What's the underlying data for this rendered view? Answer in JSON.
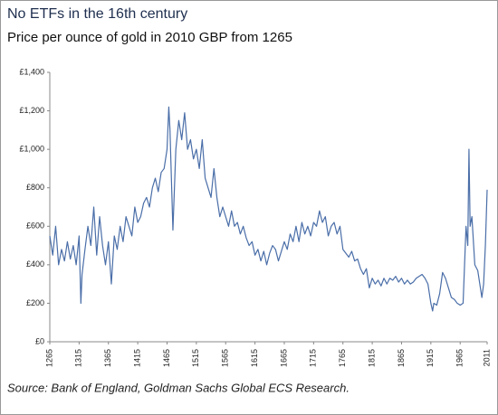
{
  "chart_data": {
    "type": "line",
    "title": "No ETFs in the 16th century",
    "subtitle": "Price per ounce of gold in 2010 GBP from 1265",
    "source": "Source: Bank of England, Goldman Sachs Global ECS Research.",
    "xlim": [
      1265,
      2011
    ],
    "xticks": [
      1265,
      1315,
      1365,
      1415,
      1465,
      1515,
      1565,
      1615,
      1665,
      1715,
      1765,
      1815,
      1865,
      1915,
      1965,
      2011
    ],
    "ylim": [
      0,
      1400
    ],
    "yticks": [
      {
        "value": 0,
        "label": "£0"
      },
      {
        "value": 200,
        "label": "£200"
      },
      {
        "value": 400,
        "label": "£400"
      },
      {
        "value": 600,
        "label": "£600"
      },
      {
        "value": 800,
        "label": "£800"
      },
      {
        "value": 1000,
        "label": "£1,000"
      },
      {
        "value": 1200,
        "label": "£1,200"
      },
      {
        "value": 1400,
        "label": "£1,400"
      }
    ],
    "grid": false,
    "series": [
      {
        "color": "#4a6ea8",
        "x": [
          1265,
          1270,
          1275,
          1280,
          1285,
          1290,
          1295,
          1300,
          1305,
          1310,
          1315,
          1318,
          1320,
          1325,
          1330,
          1335,
          1340,
          1345,
          1350,
          1355,
          1360,
          1365,
          1370,
          1375,
          1380,
          1385,
          1390,
          1395,
          1400,
          1405,
          1410,
          1415,
          1420,
          1425,
          1430,
          1435,
          1440,
          1445,
          1450,
          1455,
          1460,
          1465,
          1468,
          1470,
          1475,
          1480,
          1485,
          1490,
          1495,
          1500,
          1505,
          1510,
          1515,
          1520,
          1525,
          1530,
          1535,
          1540,
          1545,
          1550,
          1555,
          1560,
          1565,
          1570,
          1575,
          1580,
          1585,
          1590,
          1595,
          1600,
          1605,
          1610,
          1615,
          1620,
          1625,
          1630,
          1635,
          1640,
          1645,
          1650,
          1655,
          1660,
          1665,
          1670,
          1675,
          1680,
          1685,
          1690,
          1695,
          1700,
          1705,
          1710,
          1715,
          1720,
          1725,
          1730,
          1735,
          1740,
          1745,
          1750,
          1755,
          1760,
          1765,
          1770,
          1775,
          1780,
          1785,
          1790,
          1795,
          1800,
          1805,
          1810,
          1815,
          1820,
          1825,
          1830,
          1835,
          1840,
          1845,
          1850,
          1855,
          1860,
          1865,
          1870,
          1875,
          1880,
          1885,
          1890,
          1895,
          1900,
          1905,
          1910,
          1915,
          1918,
          1920,
          1925,
          1930,
          1935,
          1940,
          1945,
          1950,
          1955,
          1960,
          1965,
          1970,
          1975,
          1978,
          1980,
          1982,
          1985,
          1990,
          1995,
          2000,
          2002,
          2005,
          2008,
          2011
        ],
        "values": [
          550,
          450,
          600,
          400,
          480,
          420,
          520,
          430,
          500,
          400,
          550,
          200,
          350,
          480,
          600,
          500,
          700,
          450,
          650,
          500,
          400,
          520,
          300,
          550,
          480,
          600,
          520,
          650,
          600,
          550,
          700,
          620,
          650,
          720,
          750,
          700,
          800,
          850,
          780,
          880,
          900,
          1000,
          1220,
          1100,
          580,
          1000,
          1150,
          1050,
          1190,
          1000,
          1050,
          950,
          1000,
          900,
          1050,
          850,
          800,
          750,
          900,
          750,
          650,
          700,
          650,
          600,
          680,
          600,
          620,
          560,
          600,
          540,
          500,
          520,
          450,
          480,
          420,
          470,
          400,
          460,
          500,
          480,
          420,
          470,
          520,
          480,
          560,
          520,
          600,
          520,
          620,
          560,
          600,
          550,
          620,
          600,
          680,
          620,
          650,
          550,
          600,
          620,
          560,
          600,
          480,
          460,
          440,
          470,
          420,
          430,
          380,
          350,
          380,
          280,
          330,
          300,
          320,
          290,
          330,
          300,
          330,
          320,
          340,
          310,
          330,
          300,
          320,
          300,
          310,
          330,
          340,
          350,
          330,
          300,
          200,
          160,
          200,
          190,
          250,
          360,
          330,
          280,
          230,
          220,
          200,
          190,
          200,
          600,
          500,
          1000,
          600,
          650,
          400,
          370,
          270,
          230,
          300,
          500,
          790
        ]
      }
    ]
  }
}
